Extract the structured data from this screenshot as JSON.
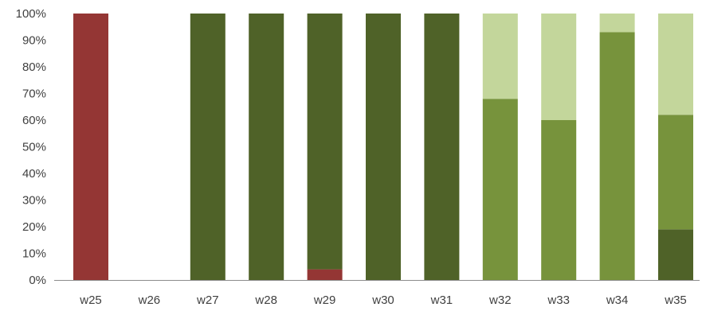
{
  "chart_data": {
    "type": "bar",
    "stacked": true,
    "categories": [
      "w25",
      "w26",
      "w27",
      "w28",
      "w29",
      "w30",
      "w31",
      "w32",
      "w33",
      "w34",
      "w35"
    ],
    "y_ticks": [
      "0%",
      "10%",
      "20%",
      "30%",
      "40%",
      "50%",
      "60%",
      "70%",
      "80%",
      "90%",
      "100%"
    ],
    "ylim": [
      0,
      100
    ],
    "grid": false,
    "legend": "none",
    "title": "",
    "xlabel": "",
    "ylabel": "",
    "series": [
      {
        "color": "#943634",
        "values": [
          100,
          0,
          0,
          0,
          4,
          0,
          0,
          0,
          0,
          0,
          0
        ]
      },
      {
        "color": "#4f6228",
        "values": [
          0,
          0,
          100,
          100,
          96,
          100,
          100,
          0,
          0,
          0,
          19
        ]
      },
      {
        "color": "#77933c",
        "values": [
          0,
          0,
          0,
          0,
          0,
          0,
          0,
          68,
          60,
          93,
          43
        ]
      },
      {
        "color": "#c3d69b",
        "values": [
          0,
          0,
          0,
          0,
          0,
          0,
          0,
          32,
          40,
          7,
          38
        ]
      }
    ]
  }
}
